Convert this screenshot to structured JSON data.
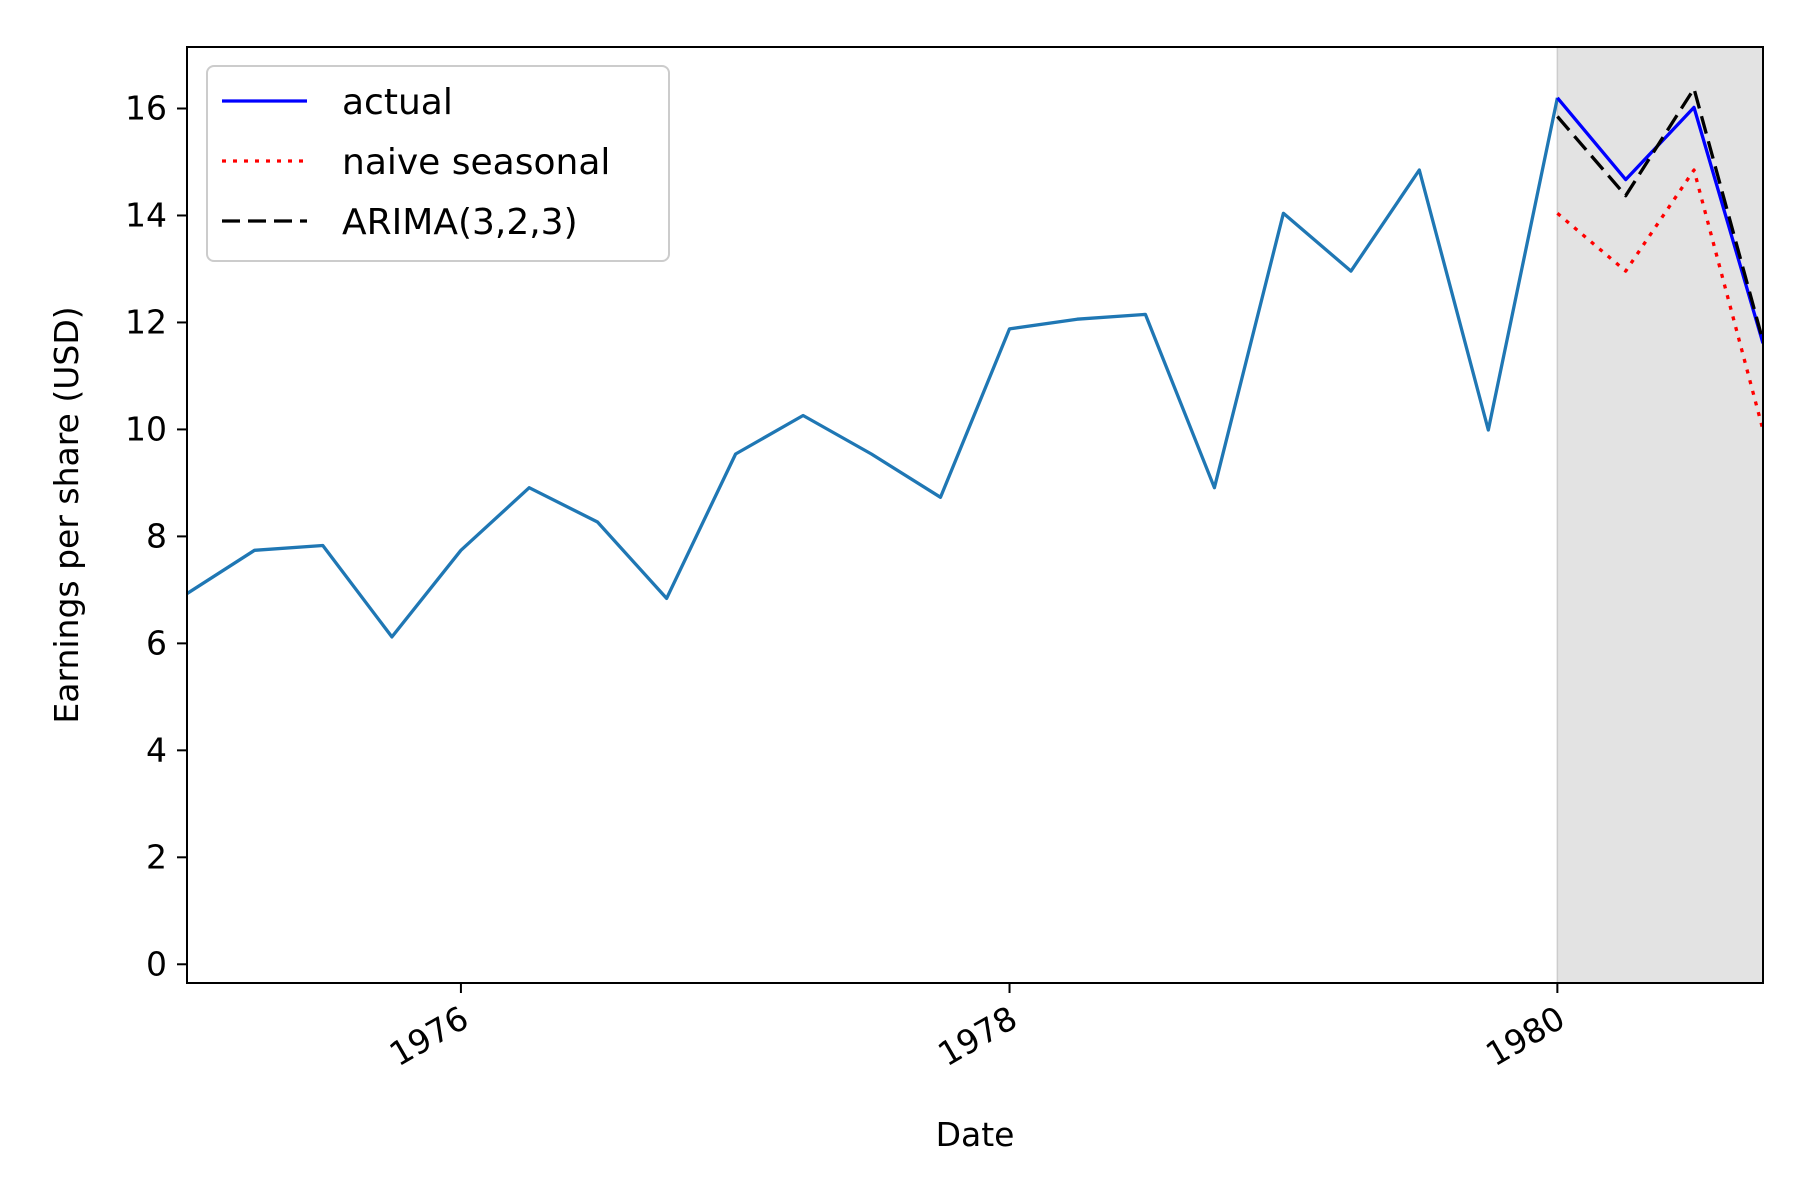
{
  "chart_data": {
    "type": "line",
    "title": "",
    "xlabel": "Date",
    "ylabel": "Earnings per share (USD)",
    "xlim": [
      "1975-01-01",
      "1980-10-01"
    ],
    "ylim": [
      -0.35,
      17.15
    ],
    "xticks": [
      "1976-01-01",
      "1978-01-01",
      "1980-01-01"
    ],
    "xtick_labels": [
      "1976",
      "1978",
      "1980"
    ],
    "yticks": [
      0,
      2,
      4,
      6,
      8,
      10,
      12,
      14,
      16
    ],
    "yticks_text": [
      "0",
      "2",
      "4",
      "6",
      "8",
      "10",
      "12",
      "14",
      "16"
    ],
    "grid": false,
    "legend_position": "upper-left",
    "shaded_region": {
      "from": "1980-01-01",
      "to": "1980-10-01",
      "color": "#e3e3e3"
    },
    "series": [
      {
        "name": "",
        "color": "#1f77b4",
        "style": "solid",
        "x": [
          "1975-01-01",
          "1975-04-01",
          "1975-07-01",
          "1975-10-01",
          "1976-01-01",
          "1976-04-01",
          "1976-07-01",
          "1976-10-01",
          "1977-01-01",
          "1977-04-01",
          "1977-07-01",
          "1977-10-01",
          "1978-01-01",
          "1978-04-01",
          "1978-07-01",
          "1978-10-01",
          "1979-01-01",
          "1979-04-01",
          "1979-07-01",
          "1979-10-01",
          "1980-01-01"
        ],
        "y": [
          6.93,
          7.74,
          7.83,
          6.12,
          7.74,
          8.91,
          8.27,
          6.84,
          9.54,
          10.26,
          9.54,
          8.73,
          11.88,
          12.06,
          12.15,
          8.91,
          14.04,
          12.96,
          14.85,
          9.99,
          16.2
        ]
      },
      {
        "name": "actual",
        "color": "#0000ff",
        "style": "solid",
        "x": [
          "1980-01-01",
          "1980-04-01",
          "1980-07-01",
          "1980-10-01"
        ],
        "y": [
          16.2,
          14.67,
          16.02,
          11.61
        ]
      },
      {
        "name": "naive seasonal",
        "color": "#ff0000",
        "style": "dotted",
        "x": [
          "1980-01-01",
          "1980-04-01",
          "1980-07-01",
          "1980-10-01"
        ],
        "y": [
          14.04,
          12.96,
          14.85,
          9.99
        ]
      },
      {
        "name": "ARIMA(3,2,3)",
        "color": "#000000",
        "style": "dashed",
        "x": [
          "1980-01-01",
          "1980-04-01",
          "1980-07-01",
          "1980-10-01"
        ],
        "y": [
          15.85,
          14.37,
          16.37,
          11.65
        ]
      }
    ]
  }
}
